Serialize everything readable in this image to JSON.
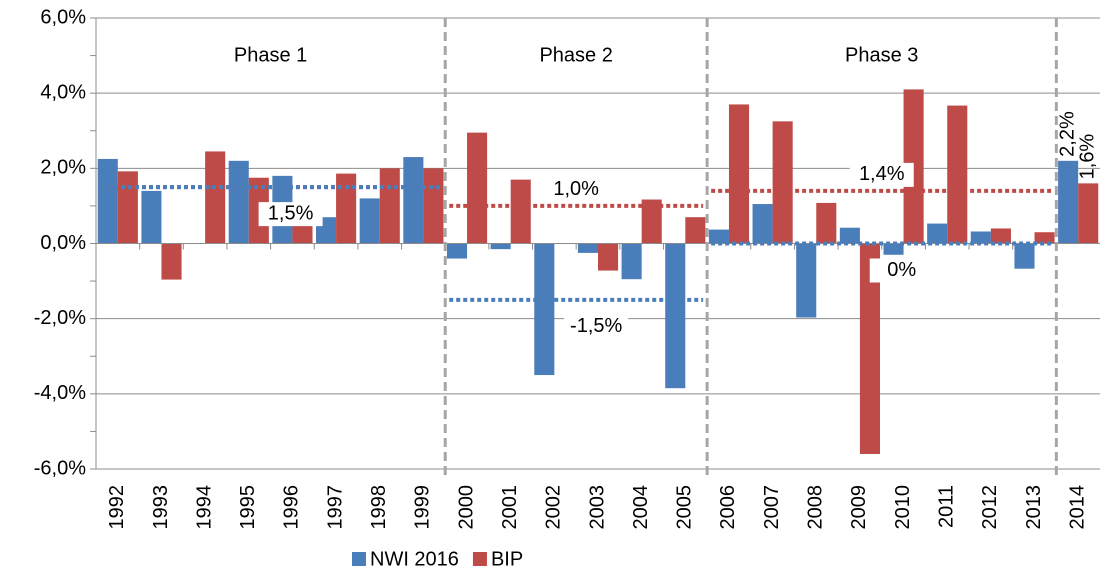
{
  "chart_data": {
    "type": "bar",
    "categories": [
      "1992",
      "1993",
      "1994",
      "1995",
      "1996",
      "1997",
      "1998",
      "1999",
      "2000",
      "2001",
      "2002",
      "2003",
      "2004",
      "2005",
      "2006",
      "2007",
      "2008",
      "2009",
      "2010",
      "2011",
      "2012",
      "2013",
      "2014"
    ],
    "series": [
      {
        "name": "NWI 2016",
        "color": "#4a7ebb",
        "values": [
          2.25,
          1.4,
          0,
          2.2,
          1.8,
          0.7,
          1.2,
          2.3,
          -0.4,
          -0.15,
          -3.5,
          -0.25,
          -0.95,
          -3.85,
          0.37,
          1.05,
          -1.97,
          0.42,
          -0.3,
          0.53,
          0.32,
          -0.67,
          2.2
        ],
        "value_labels": [
          null,
          null,
          null,
          null,
          null,
          null,
          null,
          null,
          null,
          null,
          null,
          null,
          null,
          null,
          null,
          null,
          null,
          null,
          null,
          null,
          null,
          null,
          "2,2%"
        ]
      },
      {
        "name": "BIP",
        "color": "#be4b48",
        "values": [
          1.92,
          -0.96,
          2.45,
          1.75,
          0.82,
          1.86,
          2.0,
          2.0,
          2.95,
          1.7,
          0,
          -0.72,
          1.17,
          0.7,
          3.7,
          3.25,
          1.08,
          -5.6,
          4.1,
          3.67,
          0.4,
          0.3,
          1.6
        ],
        "value_labels": [
          null,
          null,
          null,
          null,
          null,
          null,
          null,
          null,
          null,
          null,
          null,
          null,
          null,
          null,
          null,
          null,
          null,
          null,
          null,
          null,
          null,
          null,
          "1,6%"
        ]
      }
    ],
    "ylim": [
      -6,
      6
    ],
    "yticks": [
      {
        "value": -6,
        "label": "-6,0%"
      },
      {
        "value": -4,
        "label": "-4,0%"
      },
      {
        "value": -2,
        "label": "-2,0%"
      },
      {
        "value": 0,
        "label": "0,0%"
      },
      {
        "value": 2,
        "label": "2,0%"
      },
      {
        "value": 4,
        "label": "4,0%"
      },
      {
        "value": 6,
        "label": "6,0%"
      }
    ],
    "grid": true,
    "legend": "bottom",
    "phases": [
      {
        "label": "Phase 1",
        "start": 0,
        "end": 7,
        "averages": [
          {
            "series": 1,
            "value": 1.5
          },
          {
            "series": 0,
            "value": 1.5,
            "label": "1,5%"
          }
        ]
      },
      {
        "label": "Phase 2",
        "start": 8,
        "end": 13,
        "averages": [
          {
            "series": 1,
            "value": 1.0,
            "label": "1,0%"
          },
          {
            "series": 0,
            "value": -1.5,
            "label": "-1,5%"
          }
        ]
      },
      {
        "label": "Phase 3",
        "start": 14,
        "end": 21,
        "averages": [
          {
            "series": 1,
            "value": 1.4,
            "label": "1,4%"
          },
          {
            "series": 0,
            "value": 0,
            "label": "0%"
          }
        ]
      },
      {
        "start": 22,
        "end": 22
      }
    ]
  }
}
